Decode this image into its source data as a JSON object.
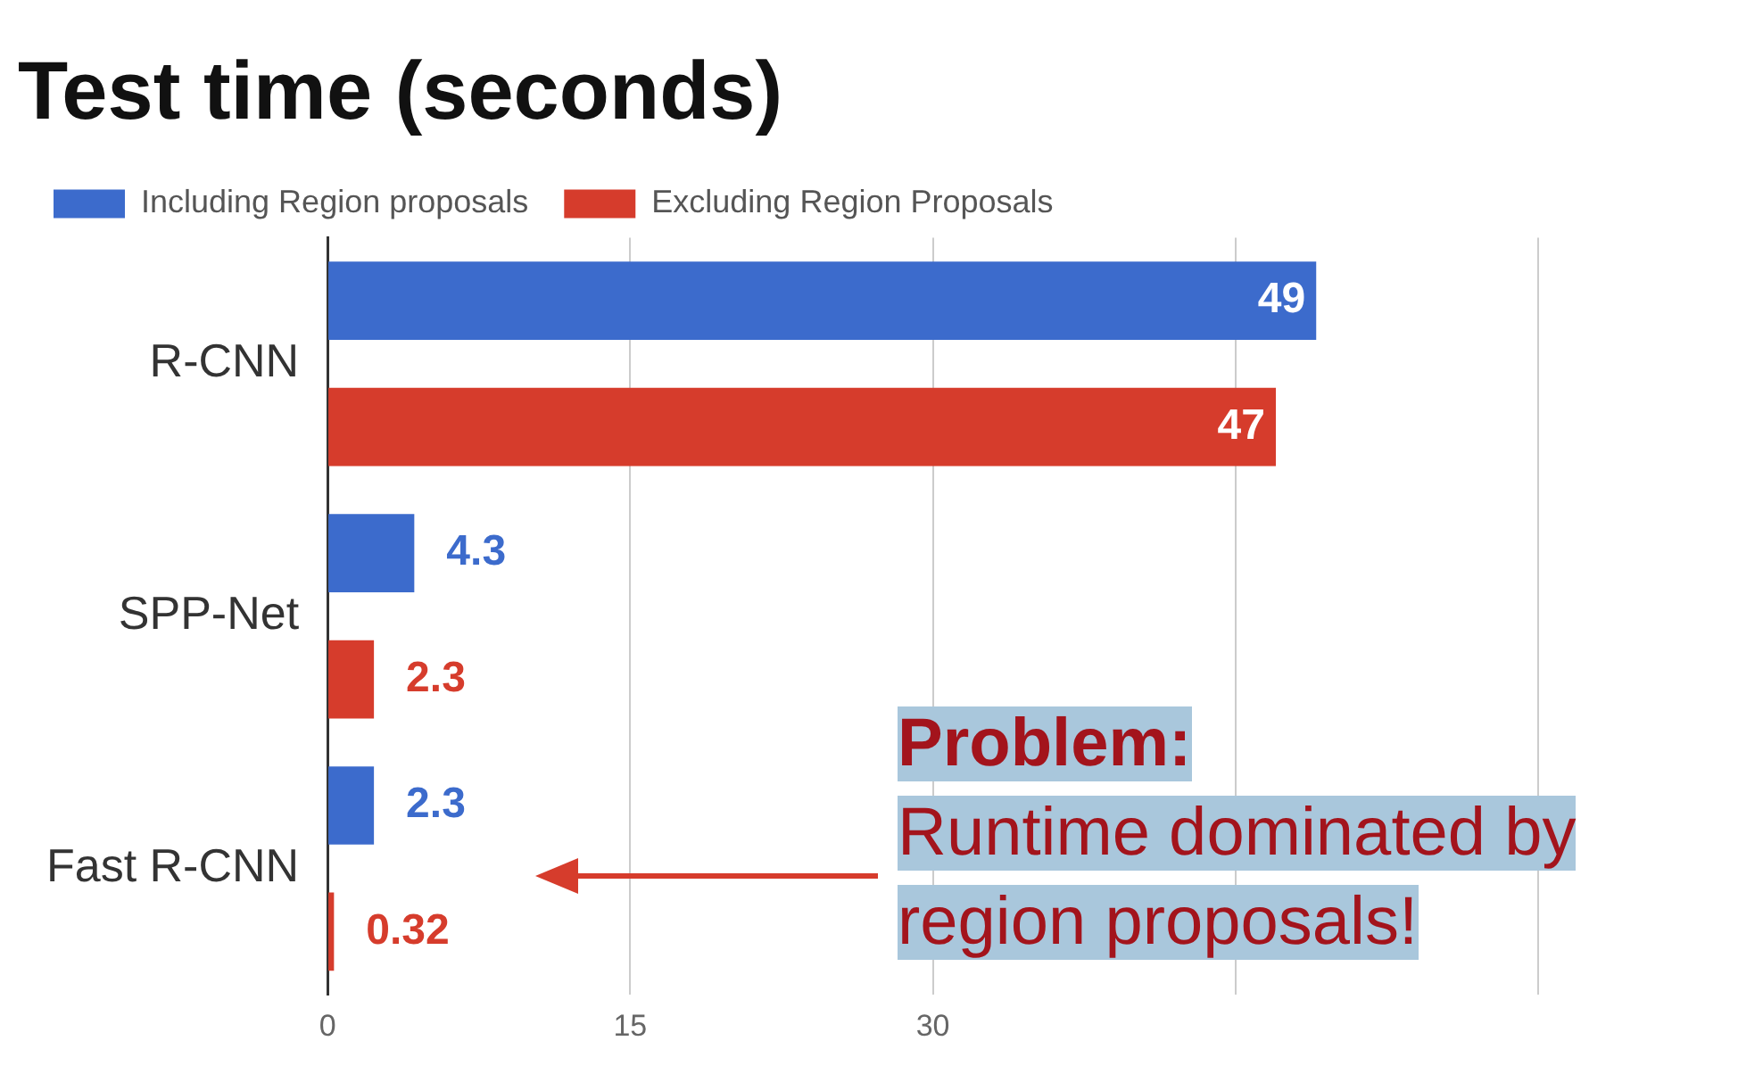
{
  "chart_data": {
    "type": "bar",
    "orientation": "horizontal",
    "title": "Test time (seconds)",
    "categories": [
      "R-CNN",
      "SPP-Net",
      "Fast R-CNN"
    ],
    "series": [
      {
        "name": "Including Region proposals",
        "color": "#3c6bcc",
        "values": [
          49,
          4.3,
          2.3
        ]
      },
      {
        "name": "Excluding Region Proposals",
        "color": "#d63c2c",
        "values": [
          47,
          2.3,
          0.32
        ]
      }
    ],
    "xlim": [
      0,
      60
    ],
    "xticks": [
      0,
      15,
      30,
      {
        "value": 45,
        "label": null
      },
      {
        "value": 60,
        "label": null
      }
    ],
    "grid": "x",
    "legend": "top",
    "data_labels": true,
    "annotations": [
      "Problem:",
      "Runtime dominated by region proposals!"
    ]
  }
}
